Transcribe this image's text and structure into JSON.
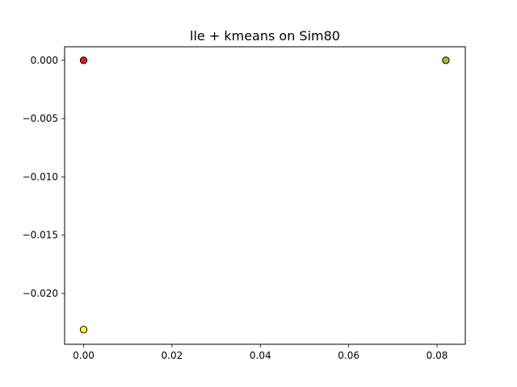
{
  "chart_data": {
    "type": "scatter",
    "title": "lle + kmeans on Sim80",
    "xlabel": "",
    "ylabel": "",
    "xlim": [
      -0.0043,
      0.0864
    ],
    "ylim": [
      -0.02436,
      0.00116
    ],
    "grid": false,
    "x_ticks": [
      {
        "value": 0.0,
        "label": "0.00"
      },
      {
        "value": 0.02,
        "label": "0.02"
      },
      {
        "value": 0.04,
        "label": "0.04"
      },
      {
        "value": 0.06,
        "label": "0.06"
      },
      {
        "value": 0.08,
        "label": "0.08"
      }
    ],
    "y_ticks": [
      {
        "value": 0.0,
        "label": "0.000"
      },
      {
        "value": -0.005,
        "label": "−0.005"
      },
      {
        "value": -0.01,
        "label": "−0.010"
      },
      {
        "value": -0.015,
        "label": "−0.015"
      },
      {
        "value": -0.02,
        "label": "−0.020"
      }
    ],
    "points": [
      {
        "x": 0.0,
        "y": 0.0,
        "color": "#e41a1c",
        "edge": "#000000"
      },
      {
        "x": 0.082,
        "y": 0.0,
        "color": "#8cc63f",
        "edge": "#000000"
      },
      {
        "x": 0.0,
        "y": -0.0231,
        "color": "#ffff33",
        "edge": "#000000"
      }
    ]
  }
}
